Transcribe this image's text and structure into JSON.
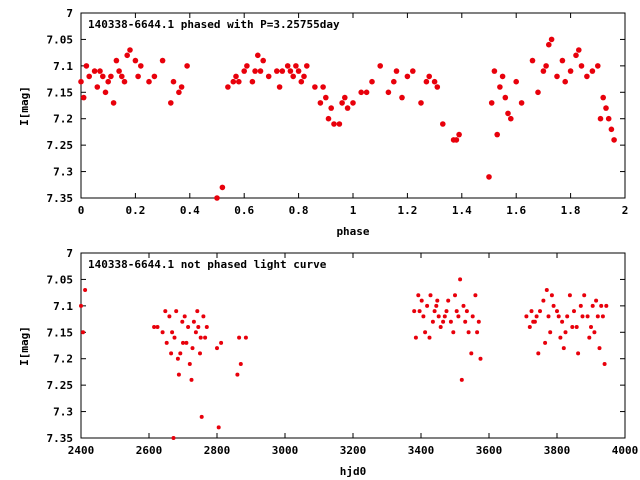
{
  "chart_data": [
    {
      "type": "scatter",
      "title": "140338-6644.1 phased with P=3.25755day",
      "xlabel": "phase",
      "ylabel": "I[mag]",
      "xlim": [
        0,
        2
      ],
      "ylim": [
        7.35,
        7.0
      ],
      "y_inverted": true,
      "xticks": [
        "0",
        "0.2",
        "0.4",
        "0.6",
        "0.8",
        "1",
        "1.2",
        "1.4",
        "1.6",
        "1.8",
        "2"
      ],
      "yticks": [
        "7",
        "7.05",
        "7.1",
        "7.15",
        "7.2",
        "7.25",
        "7.3",
        "7.35"
      ],
      "grid": false,
      "marker_color": "#e8000b",
      "series": [
        {
          "x": [
            0.0,
            0.01,
            0.02,
            0.03,
            0.05,
            0.06,
            0.07,
            0.08,
            0.09,
            0.1,
            0.11,
            0.12,
            0.13,
            0.14,
            0.15,
            0.16,
            0.17,
            0.18,
            0.2,
            0.21,
            0.22,
            0.25,
            0.27,
            0.3,
            0.33,
            0.34,
            0.36,
            0.37,
            0.39,
            0.5,
            0.52,
            0.54,
            0.56,
            0.57,
            0.58,
            0.6,
            0.61,
            0.63,
            0.64,
            0.65,
            0.66,
            0.67,
            0.69,
            0.72,
            0.73,
            0.74,
            0.76,
            0.77,
            0.78,
            0.79,
            0.8,
            0.81,
            0.82,
            0.83,
            0.86,
            0.88,
            0.89,
            0.9,
            0.91,
            0.92,
            0.93,
            0.95,
            0.96,
            0.97,
            0.98,
            1.0,
            1.03,
            1.05,
            1.07,
            1.1,
            1.13,
            1.15,
            1.16,
            1.18,
            1.2,
            1.22,
            1.25,
            1.27,
            1.28,
            1.3,
            1.31,
            1.33,
            1.37,
            1.38,
            1.39,
            1.5,
            1.51,
            1.52,
            1.53,
            1.54,
            1.55,
            1.56,
            1.57,
            1.58,
            1.6,
            1.62,
            1.66,
            1.68,
            1.7,
            1.71,
            1.72,
            1.73,
            1.75,
            1.77,
            1.78,
            1.8,
            1.82,
            1.83,
            1.84,
            1.86,
            1.88,
            1.9,
            1.91,
            1.92,
            1.93,
            1.94,
            1.95,
            1.96
          ],
          "y": [
            7.13,
            7.16,
            7.1,
            7.12,
            7.11,
            7.14,
            7.11,
            7.12,
            7.15,
            7.13,
            7.12,
            7.17,
            7.09,
            7.11,
            7.12,
            7.13,
            7.08,
            7.07,
            7.09,
            7.12,
            7.1,
            7.13,
            7.12,
            7.09,
            7.17,
            7.13,
            7.15,
            7.14,
            7.1,
            7.35,
            7.33,
            7.14,
            7.13,
            7.12,
            7.13,
            7.11,
            7.1,
            7.13,
            7.11,
            7.08,
            7.11,
            7.09,
            7.12,
            7.11,
            7.14,
            7.11,
            7.1,
            7.11,
            7.12,
            7.1,
            7.11,
            7.13,
            7.12,
            7.1,
            7.14,
            7.17,
            7.14,
            7.16,
            7.2,
            7.18,
            7.21,
            7.21,
            7.17,
            7.16,
            7.18,
            7.17,
            7.15,
            7.15,
            7.13,
            7.1,
            7.15,
            7.13,
            7.11,
            7.16,
            7.12,
            7.11,
            7.17,
            7.13,
            7.12,
            7.13,
            7.14,
            7.21,
            7.24,
            7.24,
            7.23,
            7.31,
            7.17,
            7.11,
            7.23,
            7.14,
            7.12,
            7.16,
            7.19,
            7.2,
            7.13,
            7.17,
            7.09,
            7.15,
            7.11,
            7.1,
            7.06,
            7.05,
            7.12,
            7.09,
            7.13,
            7.11,
            7.08,
            7.07,
            7.1,
            7.12,
            7.11,
            7.1,
            7.2,
            7.16,
            7.18,
            7.2,
            7.22,
            7.24
          ]
        }
      ]
    },
    {
      "type": "scatter",
      "title": "140338-6644.1 not phased light curve",
      "xlabel": "hjd0",
      "ylabel": "I[mag]",
      "xlim": [
        2400,
        4000
      ],
      "ylim": [
        7.35,
        7.0
      ],
      "y_inverted": true,
      "xticks": [
        "2400",
        "2600",
        "2800",
        "3000",
        "3200",
        "3400",
        "3600",
        "3800",
        "4000"
      ],
      "yticks": [
        "7",
        "7.05",
        "7.1",
        "7.15",
        "7.2",
        "7.25",
        "7.3",
        "7.35"
      ],
      "grid": false,
      "marker_color": "#e8000b",
      "series": [
        {
          "x": [
            2400,
            2406,
            2412,
            2615,
            2625,
            2640,
            2648,
            2652,
            2660,
            2665,
            2668,
            2672,
            2675,
            2680,
            2685,
            2688,
            2692,
            2698,
            2700,
            2705,
            2710,
            2715,
            2720,
            2725,
            2728,
            2732,
            2738,
            2742,
            2745,
            2750,
            2752,
            2755,
            2760,
            2765,
            2770,
            2800,
            2805,
            2812,
            2860,
            2865,
            2870,
            2885,
            3380,
            3385,
            3392,
            3396,
            3402,
            3407,
            3412,
            3418,
            3425,
            3428,
            3435,
            3440,
            3445,
            3448,
            3452,
            3458,
            3465,
            3470,
            3475,
            3480,
            3488,
            3495,
            3500,
            3505,
            3510,
            3515,
            3520,
            3525,
            3530,
            3535,
            3540,
            3548,
            3552,
            3560,
            3565,
            3570,
            3575,
            3710,
            3720,
            3725,
            3730,
            3735,
            3740,
            3745,
            3750,
            3760,
            3765,
            3770,
            3775,
            3780,
            3785,
            3790,
            3800,
            3805,
            3810,
            3815,
            3820,
            3825,
            3830,
            3838,
            3845,
            3850,
            3858,
            3862,
            3870,
            3875,
            3880,
            3890,
            3895,
            3900,
            3905,
            3910,
            3915,
            3920,
            3925,
            3930,
            3935,
            3940,
            3945
          ],
          "y": [
            7.1,
            7.15,
            7.07,
            7.14,
            7.14,
            7.15,
            7.11,
            7.17,
            7.12,
            7.19,
            7.15,
            7.35,
            7.16,
            7.11,
            7.2,
            7.23,
            7.19,
            7.13,
            7.17,
            7.12,
            7.17,
            7.14,
            7.21,
            7.24,
            7.18,
            7.13,
            7.15,
            7.11,
            7.14,
            7.19,
            7.16,
            7.31,
            7.12,
            7.16,
            7.14,
            7.18,
            7.33,
            7.17,
            7.23,
            7.16,
            7.21,
            7.16,
            7.11,
            7.16,
            7.08,
            7.11,
            7.09,
            7.12,
            7.15,
            7.1,
            7.16,
            7.08,
            7.13,
            7.11,
            7.1,
            7.09,
            7.12,
            7.14,
            7.13,
            7.12,
            7.11,
            7.09,
            7.13,
            7.15,
            7.08,
            7.11,
            7.12,
            7.05,
            7.24,
            7.1,
            7.13,
            7.11,
            7.15,
            7.19,
            7.12,
            7.08,
            7.15,
            7.13,
            7.2,
            7.12,
            7.14,
            7.11,
            7.13,
            7.13,
            7.12,
            7.19,
            7.11,
            7.09,
            7.17,
            7.07,
            7.12,
            7.15,
            7.08,
            7.1,
            7.11,
            7.12,
            7.16,
            7.13,
            7.18,
            7.15,
            7.12,
            7.08,
            7.14,
            7.11,
            7.14,
            7.19,
            7.1,
            7.12,
            7.08,
            7.12,
            7.16,
            7.14,
            7.1,
            7.15,
            7.09,
            7.12,
            7.18,
            7.1,
            7.12,
            7.21,
            7.1
          ]
        }
      ]
    }
  ]
}
